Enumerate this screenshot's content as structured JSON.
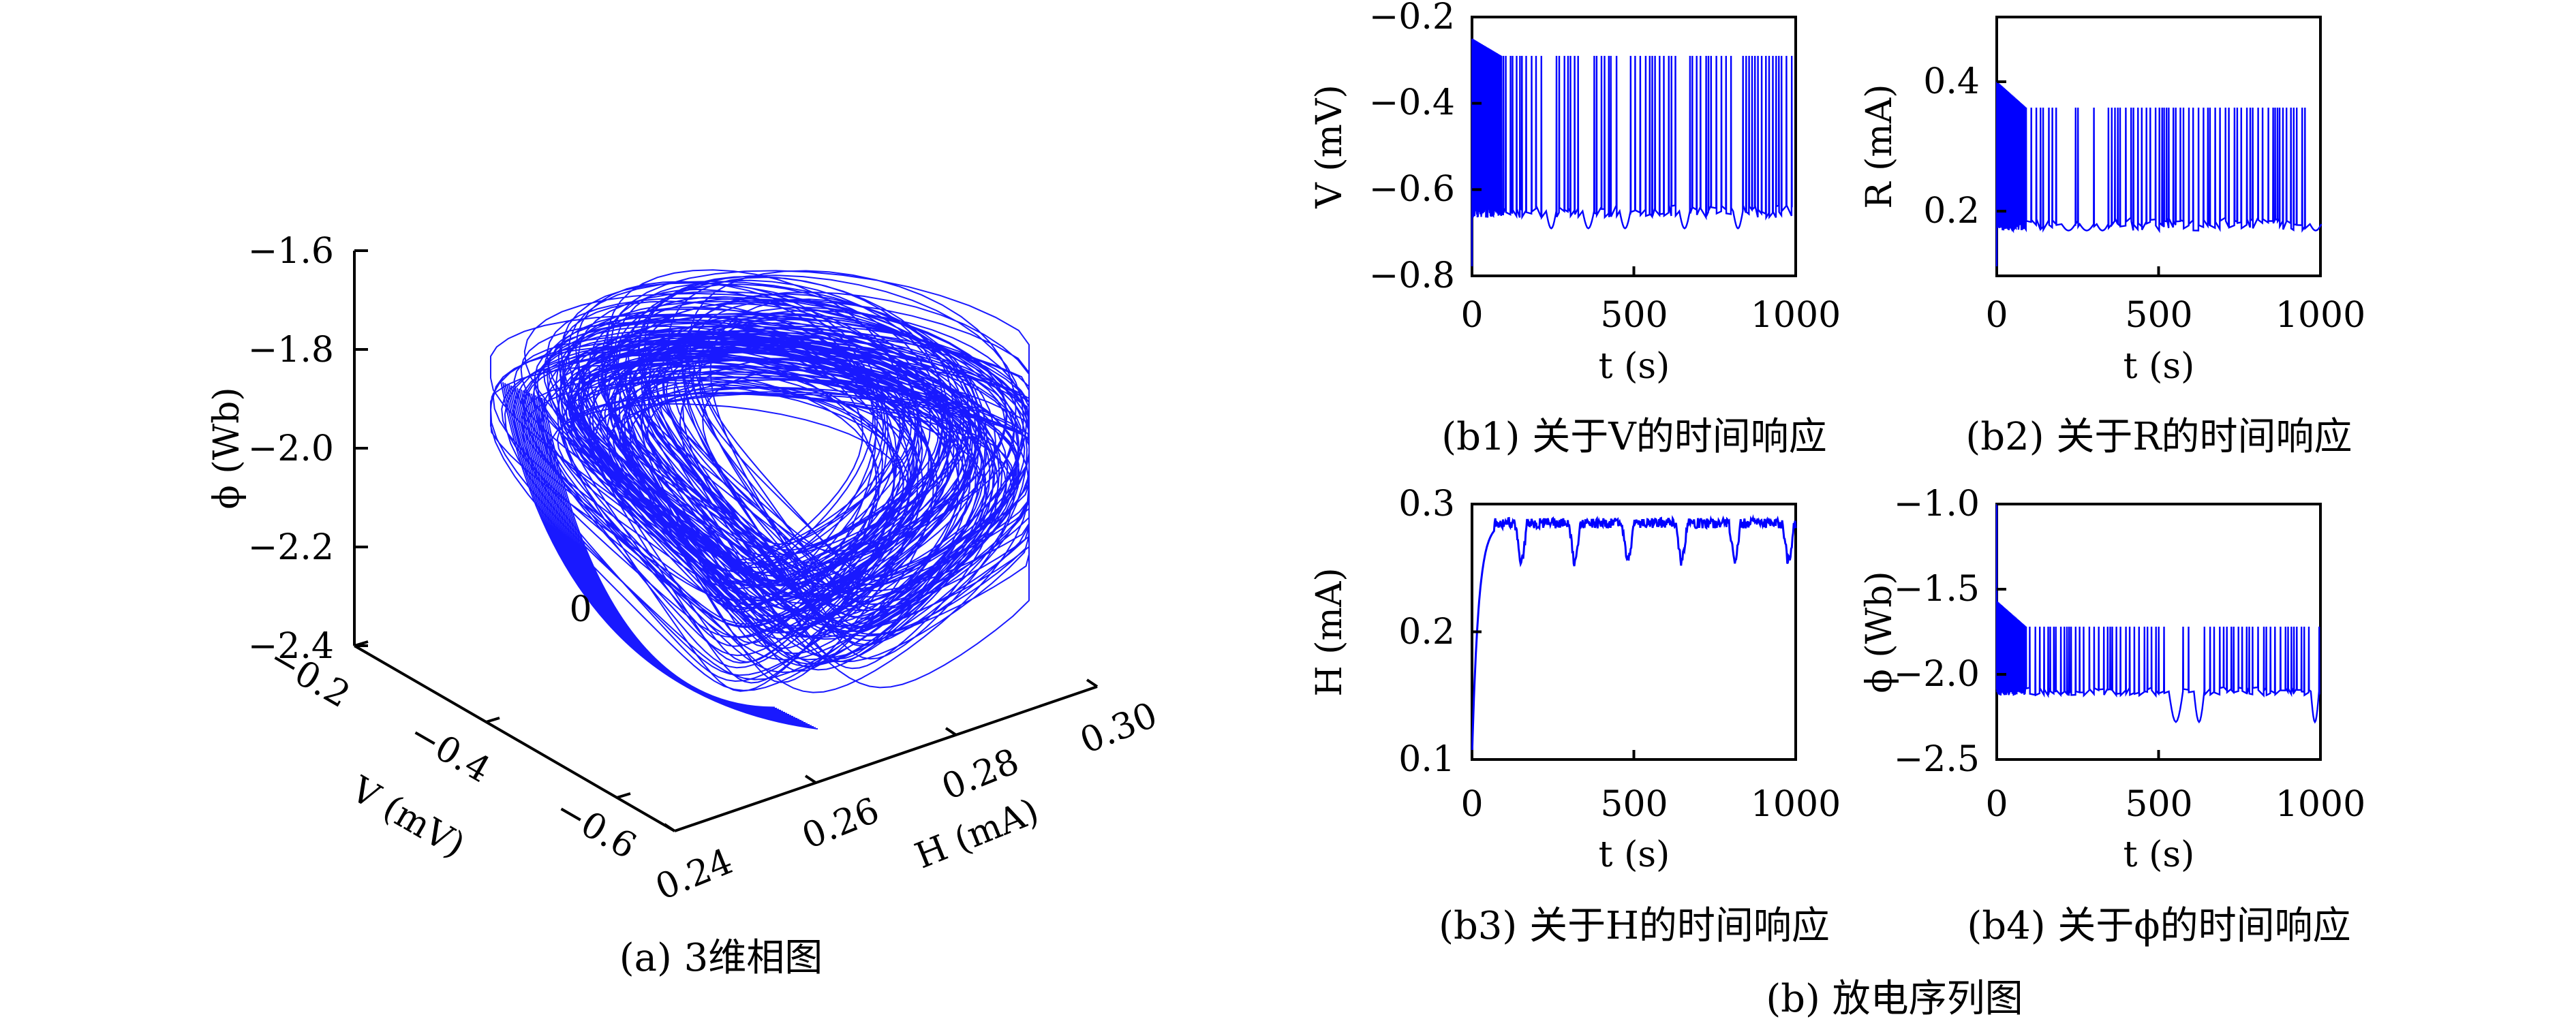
{
  "chart_data": [
    {
      "type": "line3d",
      "id": "a",
      "caption": "(a) 3维相图",
      "xlabel": "V (mV)",
      "ylabel": "H (mA)",
      "zlabel": "ϕ (Wb)",
      "xticks": [
        "−0.2",
        "−0.4",
        "−0.6"
      ],
      "yticks": [
        "0.24",
        "0.26",
        "0.28",
        "0.30"
      ],
      "zticks": [
        "−1.6",
        "−1.8",
        "−2.0",
        "−2.2",
        "−2.4"
      ],
      "origin_label": "0",
      "xlim": [
        -0.7,
        -0.2
      ],
      "ylim": [
        0.24,
        0.3
      ],
      "zlim": [
        -2.4,
        -1.6
      ],
      "color": "#0000ff"
    },
    {
      "type": "line",
      "id": "b1",
      "caption": "(b1) 关于V的时间响应",
      "xlabel": "t (s)",
      "ylabel": "V (mV)",
      "xlim": [
        0,
        1000
      ],
      "ylim": [
        -0.8,
        -0.2
      ],
      "xticks": [
        "0",
        "500",
        "1000"
      ],
      "yticks": [
        "−0.2",
        "−0.4",
        "−0.6",
        "−0.8"
      ],
      "baseline": -0.65,
      "spike_top": -0.29,
      "trough": -0.69,
      "color": "#0000ff"
    },
    {
      "type": "line",
      "id": "b2",
      "caption": "(b2) 关于R的时间响应",
      "xlabel": "t (s)",
      "ylabel": "R (mA)",
      "xlim": [
        0,
        1000
      ],
      "ylim": [
        0.1,
        0.5
      ],
      "xticks": [
        "0",
        "500",
        "1000"
      ],
      "yticks": [
        "0.4",
        "0.2"
      ],
      "baseline": 0.18,
      "spike_top": 0.36,
      "trough": 0.17,
      "color": "#0000ff"
    },
    {
      "type": "line",
      "id": "b3",
      "caption": "(b3) 关于H的时间响应",
      "xlabel": "t (s)",
      "ylabel": "H (mA)",
      "xlim": [
        0,
        1000
      ],
      "ylim": [
        0.1,
        0.3
      ],
      "xticks": [
        "0",
        "500",
        "1000"
      ],
      "yticks": [
        "0.3",
        "0.2",
        "0.1"
      ],
      "plateau": 0.285,
      "dip": 0.255,
      "color": "#0000ff"
    },
    {
      "type": "line",
      "id": "b4",
      "caption": "(b4) 关于ϕ的时间响应",
      "xlabel": "t (s)",
      "ylabel": "ϕ (Wb)",
      "xlim": [
        0,
        1000
      ],
      "ylim": [
        -2.5,
        -1.0
      ],
      "xticks": [
        "0",
        "500",
        "1000"
      ],
      "yticks": [
        "−1.0",
        "−1.5",
        "−2.0",
        "−2.5"
      ],
      "baseline": -2.1,
      "spike_top": -1.72,
      "trough": -2.28,
      "color": "#0000ff"
    }
  ],
  "group_caption": "(b) 放电序列图"
}
